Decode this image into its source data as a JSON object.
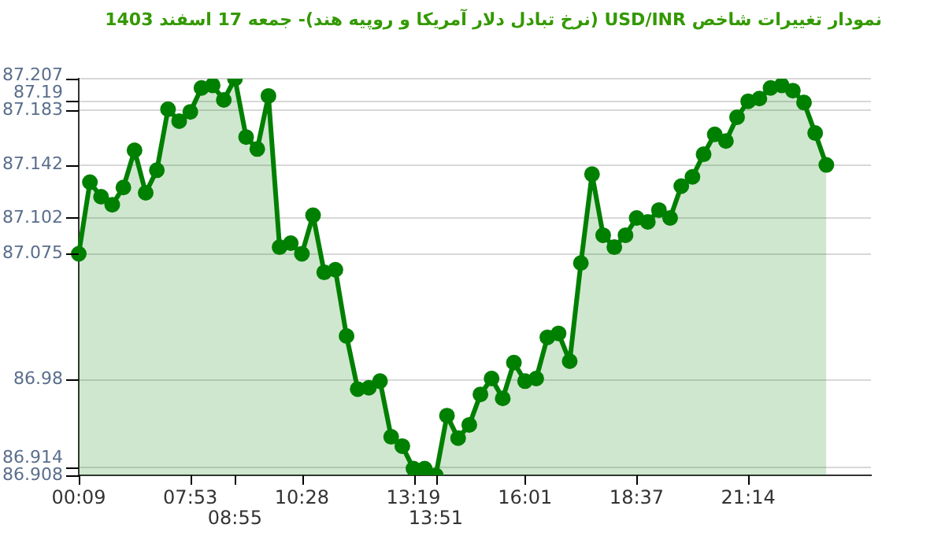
{
  "chart_data": {
    "type": "area",
    "title": "نمودار تغییرات شاخص USD/INR (نرخ تبادل دلار آمریکا و روپیه هند)- جمعه 17 اسفند 1403",
    "categories": [
      "00:09",
      null,
      null,
      null,
      null,
      null,
      null,
      null,
      null,
      null,
      "07:53",
      null,
      null,
      null,
      "08:55",
      null,
      null,
      null,
      null,
      null,
      "10:28",
      null,
      null,
      null,
      null,
      null,
      null,
      null,
      null,
      null,
      "13:19",
      null,
      "13:51",
      null,
      null,
      null,
      null,
      null,
      null,
      null,
      "16:01",
      null,
      null,
      null,
      null,
      null,
      null,
      null,
      null,
      null,
      "18:37",
      null,
      null,
      null,
      null,
      null,
      null,
      null,
      null,
      null,
      "21:14",
      null,
      null,
      null,
      null,
      null,
      null,
      null,
      null,
      null,
      null,
      null
    ],
    "values": [
      87.075,
      87.129,
      87.118,
      87.112,
      87.125,
      87.153,
      87.121,
      87.138,
      87.184,
      87.175,
      87.182,
      87.2,
      87.202,
      87.191,
      87.207,
      87.163,
      87.154,
      87.194,
      87.08,
      87.083,
      87.075,
      87.104,
      87.061,
      87.063,
      87.013,
      86.973,
      86.974,
      86.979,
      86.937,
      86.93,
      86.913,
      86.913,
      86.908,
      86.953,
      86.936,
      86.946,
      86.969,
      86.981,
      86.966,
      86.993,
      86.979,
      86.981,
      87.012,
      87.015,
      86.994,
      87.068,
      87.135,
      87.089,
      87.08,
      87.089,
      87.102,
      87.099,
      87.108,
      87.102,
      87.126,
      87.133,
      87.15,
      87.165,
      87.16,
      87.178,
      87.19,
      87.192,
      87.2,
      87.202,
      87.198,
      87.189,
      87.166,
      87.142,
      null,
      null,
      null,
      null
    ],
    "color": "#008000",
    "marker": "circle",
    "grid": "y",
    "ylim": [
      86.908,
      87.207
    ],
    "yticks": [
      86.908,
      86.914,
      86.98,
      87.075,
      87.102,
      87.142,
      87.183,
      87.19,
      87.207
    ]
  }
}
